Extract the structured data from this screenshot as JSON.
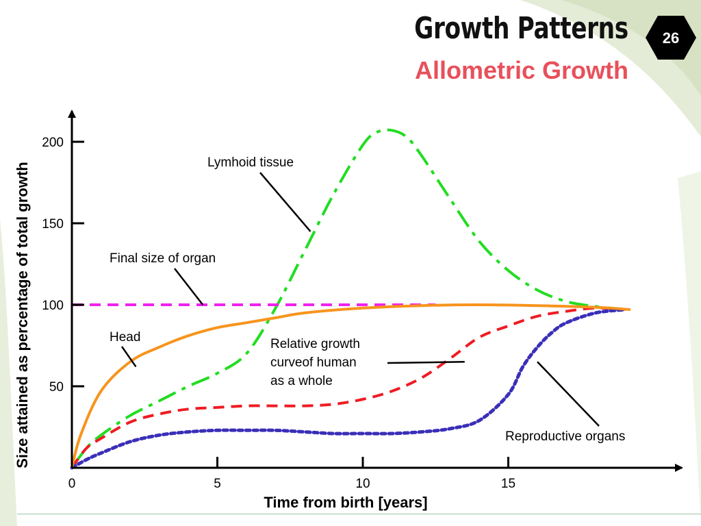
{
  "slide": {
    "title": "Growth Patterns",
    "subtitle": "Allometric Growth",
    "page_number": "26",
    "colors": {
      "title": "#111111",
      "subtitle": "#e8505b",
      "badge_bg": "#000000",
      "badge_text": "#ffffff",
      "background_swoosh": "#eef4e6"
    }
  },
  "chart_data": {
    "type": "line",
    "xlabel": "Time from birth [years]",
    "ylabel": "Size attained as percentage of total growth",
    "xlim": [
      0,
      21
    ],
    "ylim": [
      0,
      215
    ],
    "x_ticks": [
      0,
      5,
      10,
      15
    ],
    "y_ticks": [
      50,
      100,
      150,
      200
    ],
    "grid": false,
    "series": [
      {
        "name": "Lymhoid tissue",
        "color": "#22dd22",
        "style": "dash-dot",
        "x": [
          0,
          0.5,
          1,
          2,
          3,
          4,
          5,
          6,
          7,
          8,
          9,
          10,
          10.5,
          11,
          11.5,
          12,
          13,
          14,
          15,
          16,
          17,
          18,
          19
        ],
        "y": [
          0,
          12,
          20,
          32,
          41,
          50,
          58,
          70,
          98,
          133,
          168,
          198,
          206,
          207,
          203,
          192,
          165,
          139,
          121,
          109,
          102,
          99,
          97
        ]
      },
      {
        "name": "Final size of organ",
        "color": "#ee22ee",
        "style": "dashed",
        "x": [
          0,
          12.5
        ],
        "y": [
          100,
          100
        ]
      },
      {
        "name": "Head",
        "color": "#f7941d",
        "style": "solid",
        "x": [
          0,
          0.3,
          1,
          2,
          3,
          4,
          5,
          6,
          7,
          8,
          10,
          12,
          14,
          16,
          18,
          19.2
        ],
        "y": [
          0,
          20,
          47,
          65,
          74,
          81,
          86,
          89,
          92,
          95,
          98,
          99.5,
          100,
          99.5,
          98.5,
          97
        ]
      },
      {
        "name": "Relative growth curveof human as a whole",
        "color": "#ee1c24",
        "style": "dashed",
        "x": [
          0,
          0.5,
          1,
          2,
          3,
          4,
          5,
          6,
          7,
          8,
          9,
          10,
          11,
          12,
          13,
          14,
          15,
          16,
          17,
          18,
          19
        ],
        "y": [
          0,
          12,
          18,
          28,
          33,
          36,
          37,
          38,
          38,
          38,
          39,
          42,
          47,
          55,
          67,
          80,
          87,
          93,
          96,
          98,
          97
        ]
      },
      {
        "name": "Reproductive organs",
        "color": "#3a2fb8",
        "style": "dotted",
        "x": [
          0,
          0.5,
          1,
          2,
          3,
          4,
          5,
          6,
          7,
          8,
          9,
          10,
          11,
          12,
          13,
          14,
          15,
          15.5,
          16,
          16.5,
          17,
          18,
          19
        ],
        "y": [
          0,
          5,
          9,
          16,
          20,
          22,
          23,
          23,
          23,
          22,
          21,
          21,
          21,
          22,
          24,
          29,
          45,
          62,
          74,
          83,
          89,
          95,
          97
        ]
      }
    ],
    "annotations": [
      {
        "text": "Lymhoid tissue",
        "points_to": [
          8.2,
          145
        ]
      },
      {
        "text": "Final size of organ",
        "points_to": [
          4.5,
          100
        ]
      },
      {
        "text": "Head",
        "points_to": [
          2.2,
          62
        ]
      },
      {
        "text_lines": [
          "Relative growth",
          "curveof human",
          "as a whole"
        ],
        "points_to": [
          13.5,
          65
        ]
      },
      {
        "text": "Reproductive organs",
        "points_to": [
          16,
          65
        ]
      }
    ]
  }
}
